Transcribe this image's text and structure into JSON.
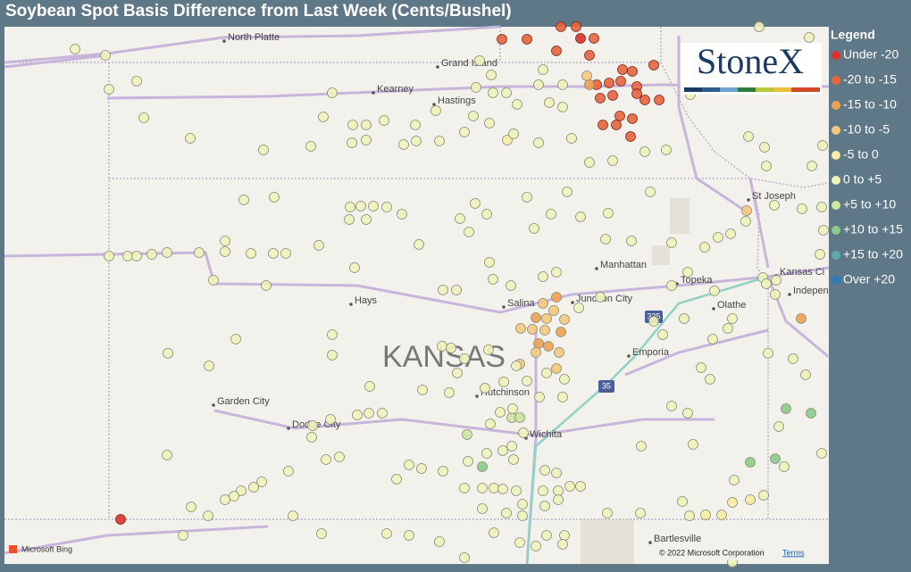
{
  "header": {
    "title": "Soybean Spot Basis Difference from Last Week (Cents/Bushel)"
  },
  "legend": {
    "title": "Legend",
    "items": [
      {
        "label": "Under -20",
        "color": "#e0302c"
      },
      {
        "label": "-20 to -15",
        "color": "#e8643f"
      },
      {
        "label": "-15 to -10",
        "color": "#f0a052"
      },
      {
        "label": "-10 to -5",
        "color": "#f6c97c"
      },
      {
        "label": "-5 to 0",
        "color": "#f8eca6"
      },
      {
        "label": "0 to +5",
        "color": "#eef3ba"
      },
      {
        "label": "+5 to +10",
        "color": "#cde6a0"
      },
      {
        "label": "+10 to +15",
        "color": "#8ccb8a"
      },
      {
        "label": "+15 to +20",
        "color": "#5aa8aa"
      },
      {
        "label": "Over +20",
        "color": "#2c7bb6"
      }
    ]
  },
  "map": {
    "labels": [
      "North Platte",
      "Grand Island",
      "Kearney",
      "Hastings",
      "St Joseph",
      "Manhattan",
      "Topeka",
      "Kansas Ci",
      "Indepen",
      "Hays",
      "Salina",
      "Junction City",
      "Olathe",
      "Emporia",
      "KANSAS",
      "Hutchinson",
      "Garden City",
      "Dodge City",
      "Wichita",
      "Bartlesville"
    ],
    "shields": [
      "335",
      "35"
    ],
    "logo": "StoneX",
    "attribution": "Microsoft Bing",
    "copyright": "© 2022 Microsoft Corporation",
    "terms": "Terms"
  }
}
